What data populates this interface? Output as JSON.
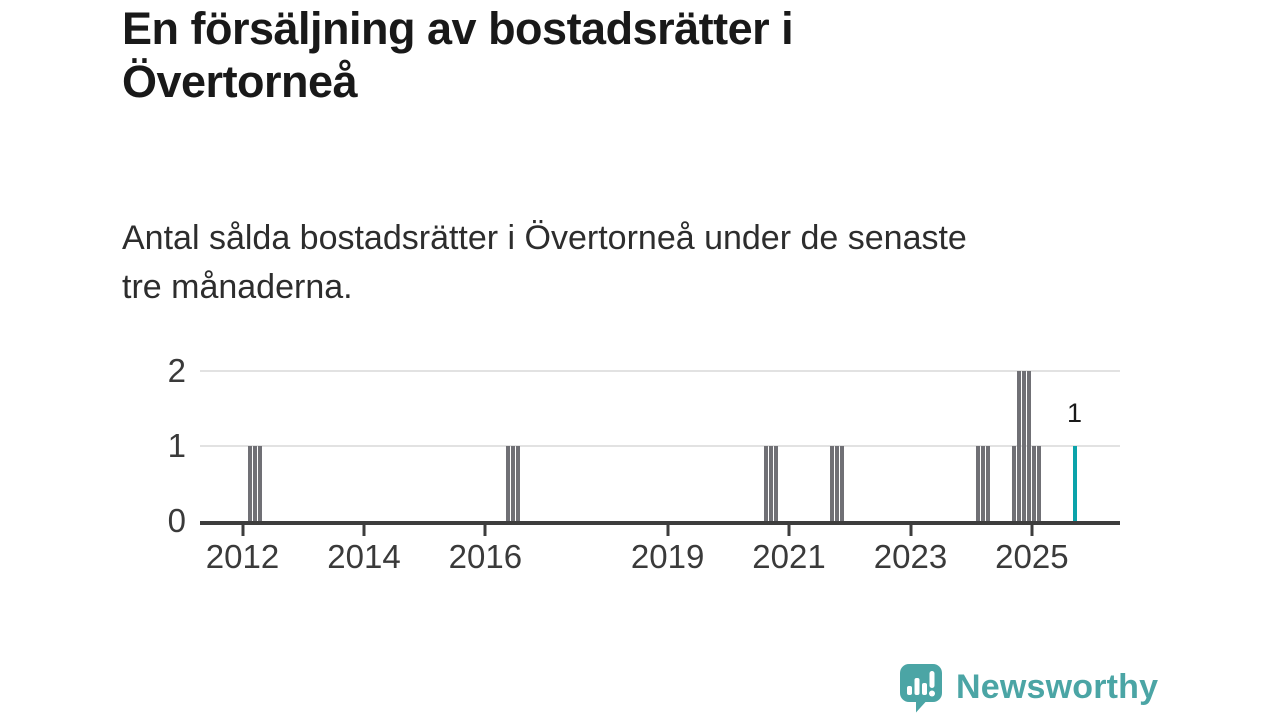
{
  "header": {
    "title": "En försäljning av bostadsrätter i Övertorneå",
    "title_lines": [
      "En försäljning av bostadsrätter i",
      "Övertorneå"
    ],
    "subtitle": "Antal sålda bostadsrätter i Övertorneå under de senaste tre månaderna.",
    "subtitle_lines": [
      "Antal sålda bostadsrätter i Övertorneå under de senaste",
      "tre månaderna."
    ]
  },
  "colors": {
    "bar_gray": "#707075",
    "bar_highlight_teal": "#0ba3aa",
    "logo_teal": "#4ba5a5",
    "gridline": "#e2e2e2",
    "axis": "#3d3d3d",
    "title_text": "#191919",
    "body_text": "#2d2d2d",
    "tick_text": "#3a3a3a"
  },
  "chart_data": {
    "type": "bar",
    "title": "En försäljning av bostadsrätter i Övertorneå",
    "subtitle": "Antal sålda bostadsrätter i Övertorneå under de senaste tre månaderna.",
    "xlabel": "",
    "ylabel": "",
    "grid": "horizontal-only",
    "legend": "none",
    "x_axis": {
      "min": 2011.3,
      "max": 2026.45,
      "tick_values": [
        2012,
        2014,
        2016,
        2019,
        2021,
        2023,
        2025
      ],
      "tick_labels": [
        "2012",
        "2014",
        "2016",
        "2019",
        "2021",
        "2023",
        "2025"
      ]
    },
    "y_axis": {
      "min": 0,
      "max": 2,
      "ticks": [
        0,
        1,
        2
      ],
      "tick_labels": [
        "0",
        "1",
        "2"
      ]
    },
    "bars": [
      {
        "month": "2012-02",
        "t": 2012.083,
        "value": 1
      },
      {
        "month": "2012-03",
        "t": 2012.167,
        "value": 1
      },
      {
        "month": "2012-04",
        "t": 2012.25,
        "value": 1
      },
      {
        "month": "2016-05",
        "t": 2016.333,
        "value": 1
      },
      {
        "month": "2016-06",
        "t": 2016.417,
        "value": 1
      },
      {
        "month": "2016-07",
        "t": 2016.5,
        "value": 1
      },
      {
        "month": "2020-08",
        "t": 2020.583,
        "value": 1
      },
      {
        "month": "2020-09",
        "t": 2020.667,
        "value": 1
      },
      {
        "month": "2020-10",
        "t": 2020.75,
        "value": 1
      },
      {
        "month": "2021-09",
        "t": 2021.667,
        "value": 1
      },
      {
        "month": "2021-10",
        "t": 2021.75,
        "value": 1
      },
      {
        "month": "2021-11",
        "t": 2021.833,
        "value": 1
      },
      {
        "month": "2024-02",
        "t": 2024.083,
        "value": 1
      },
      {
        "month": "2024-03",
        "t": 2024.167,
        "value": 1
      },
      {
        "month": "2024-04",
        "t": 2024.25,
        "value": 1
      },
      {
        "month": "2024-09",
        "t": 2024.667,
        "value": 1
      },
      {
        "month": "2024-10",
        "t": 2024.75,
        "value": 2
      },
      {
        "month": "2024-11",
        "t": 2024.833,
        "value": 2
      },
      {
        "month": "2024-12",
        "t": 2024.917,
        "value": 2
      },
      {
        "month": "2025-01",
        "t": 2025.0,
        "value": 1
      },
      {
        "month": "2025-02",
        "t": 2025.083,
        "value": 1
      },
      {
        "month": "2025-09",
        "t": 2025.667,
        "value": 1,
        "highlight": true,
        "label": "1"
      }
    ]
  },
  "footer": {
    "brand": "Newsworthy"
  }
}
